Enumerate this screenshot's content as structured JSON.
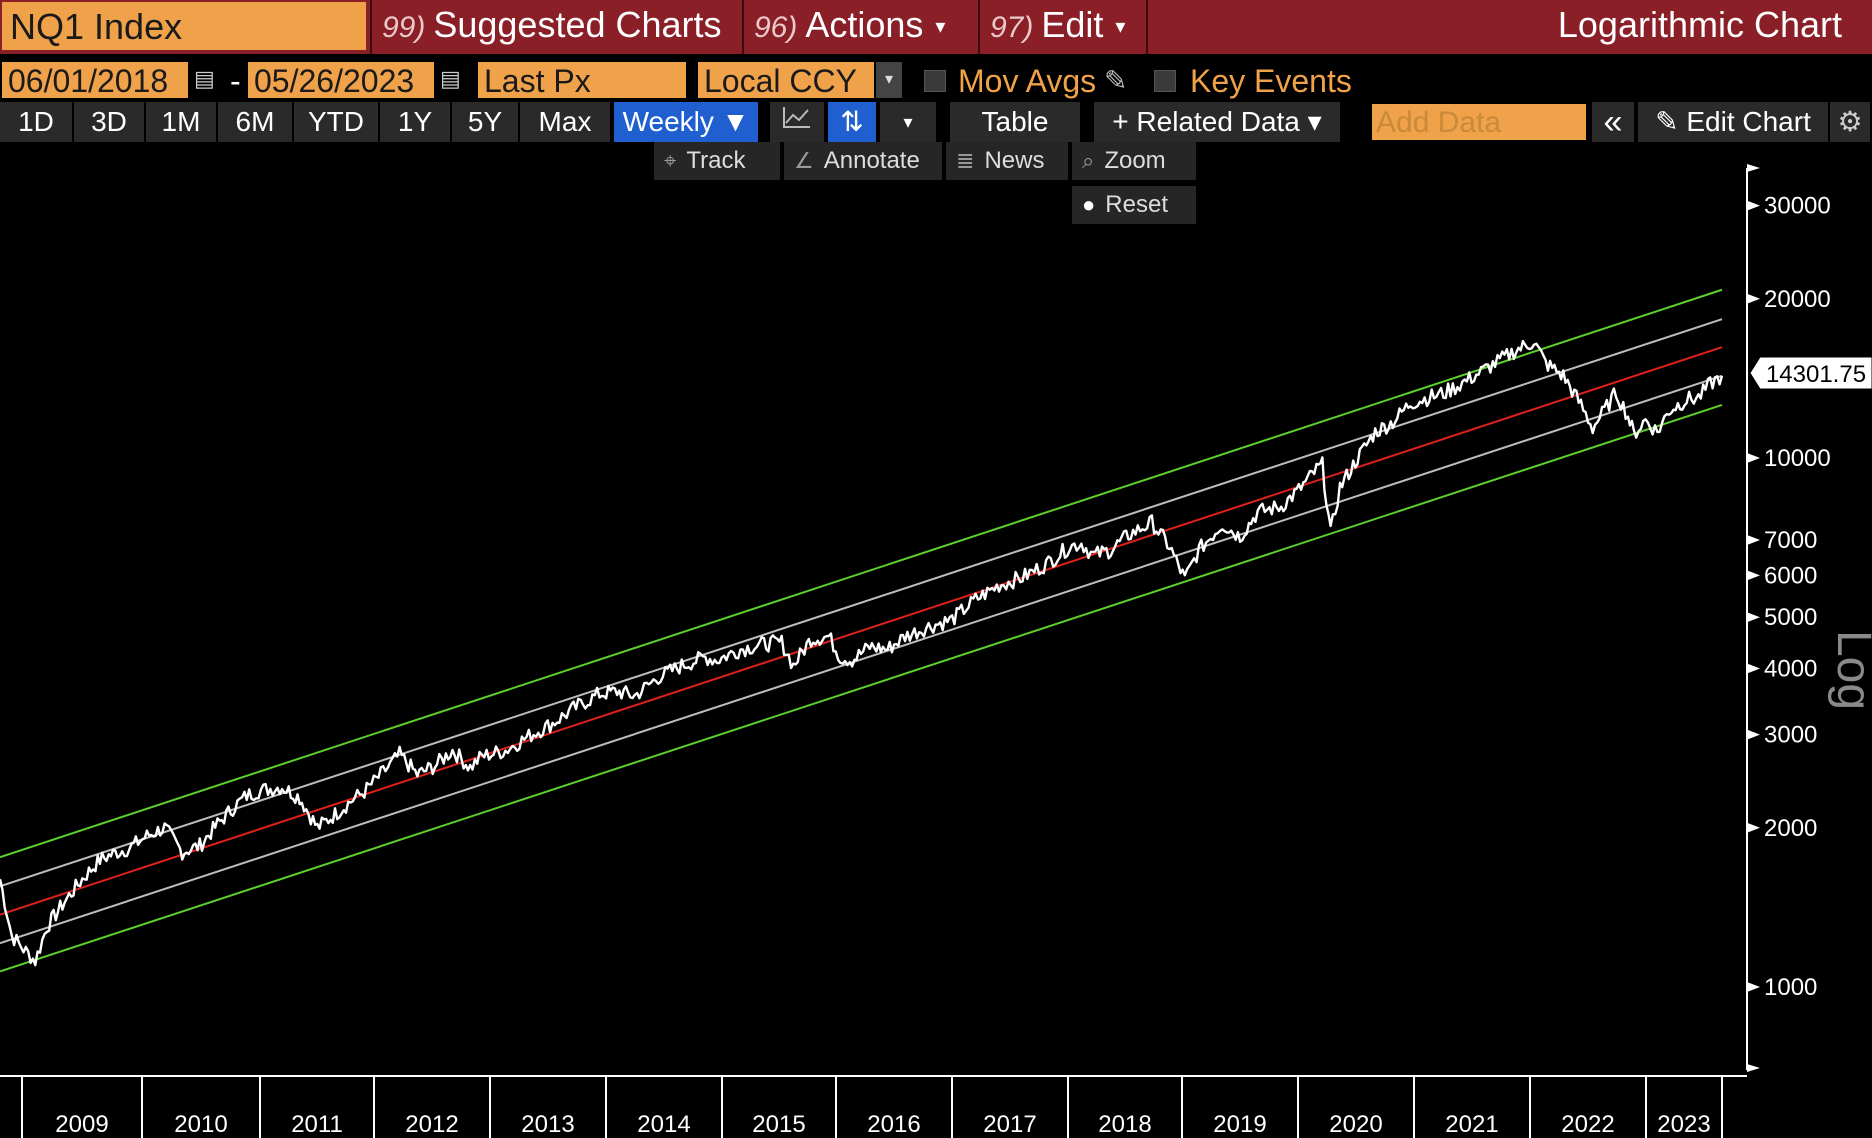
{
  "header": {
    "ticker": "NQ1 Index",
    "suggested": {
      "num": "99)",
      "label": "Suggested Charts"
    },
    "actions": {
      "num": "96)",
      "label": "Actions"
    },
    "edit": {
      "num": "97)",
      "label": "Edit"
    },
    "title": "Logarithmic Chart",
    "caret": "▾"
  },
  "controls": {
    "start_date": "06/01/2018",
    "dash": "-",
    "end_date": "05/26/2023",
    "price_field": "Last Px",
    "currency": "Local CCY",
    "mov_avgs": "Mov Avgs",
    "key_events": "Key Events",
    "calendar_glyph": "▤",
    "dropdown_glyph": "▾",
    "pencil_glyph": "✎"
  },
  "toolbar": {
    "periods": [
      "1D",
      "3D",
      "1M",
      "6M",
      "YTD",
      "1Y",
      "5Y",
      "Max"
    ],
    "frequency": "Weekly ▼",
    "chart_type_glyph": "📈",
    "bar_type_glyph": "⇅",
    "more_glyph": "▾",
    "table": "Table",
    "related_data": "+ Related Data ▾",
    "add_data_placeholder": "Add Data",
    "collapse_glyph": "«",
    "edit_chart": "✎ Edit Chart",
    "settings_glyph": "⚙"
  },
  "tools": {
    "track": "Track",
    "annotate": "Annotate",
    "news": "News",
    "zoom": "Zoom",
    "reset": "Reset",
    "track_glyph": "⌖",
    "annotate_glyph": "∠",
    "news_glyph": "≣",
    "zoom_glyph": "⌕",
    "reset_glyph": "●"
  },
  "chart_data": {
    "type": "line",
    "scale": "log",
    "axis_side_label": "Log",
    "ylim": [
      700,
      40000
    ],
    "y_ticks": [
      1000,
      2000,
      3000,
      4000,
      5000,
      6000,
      7000,
      10000,
      20000,
      30000
    ],
    "y_tick_labels": [
      "1000",
      "2000",
      "3000",
      "4000",
      "5000",
      "6000",
      "7000",
      "10000",
      "20000",
      "30000"
    ],
    "x_range": [
      2008.9,
      2023.55
    ],
    "x_year_labels": [
      "2009",
      "2010",
      "2011",
      "2012",
      "2013",
      "2014",
      "2015",
      "2016",
      "2017",
      "2018",
      "2019",
      "2020",
      "2021",
      "2022",
      "2023"
    ],
    "last_value_label": "14301.75",
    "price": {
      "color": "#ffffff",
      "points": [
        [
          2008.9,
          1600
        ],
        [
          2009.0,
          1250
        ],
        [
          2009.1,
          1180
        ],
        [
          2009.2,
          1120
        ],
        [
          2009.3,
          1300
        ],
        [
          2009.45,
          1450
        ],
        [
          2009.6,
          1600
        ],
        [
          2009.75,
          1740
        ],
        [
          2009.9,
          1800
        ],
        [
          2010.0,
          1830
        ],
        [
          2010.15,
          1930
        ],
        [
          2010.3,
          2000
        ],
        [
          2010.45,
          1800
        ],
        [
          2010.6,
          1850
        ],
        [
          2010.75,
          2030
        ],
        [
          2010.9,
          2200
        ],
        [
          2011.0,
          2300
        ],
        [
          2011.1,
          2350
        ],
        [
          2011.3,
          2390
        ],
        [
          2011.45,
          2280
        ],
        [
          2011.6,
          2000
        ],
        [
          2011.75,
          2120
        ],
        [
          2011.9,
          2260
        ],
        [
          2012.0,
          2340
        ],
        [
          2012.2,
          2600
        ],
        [
          2012.3,
          2750
        ],
        [
          2012.45,
          2520
        ],
        [
          2012.6,
          2620
        ],
        [
          2012.75,
          2800
        ],
        [
          2012.9,
          2600
        ],
        [
          2013.0,
          2730
        ],
        [
          2013.2,
          2800
        ],
        [
          2013.4,
          2980
        ],
        [
          2013.6,
          3150
        ],
        [
          2013.8,
          3380
        ],
        [
          2014.0,
          3580
        ],
        [
          2014.15,
          3620
        ],
        [
          2014.3,
          3550
        ],
        [
          2014.5,
          3850
        ],
        [
          2014.7,
          4050
        ],
        [
          2014.9,
          4200
        ],
        [
          2015.0,
          4150
        ],
        [
          2015.2,
          4350
        ],
        [
          2015.4,
          4450
        ],
        [
          2015.55,
          4480
        ],
        [
          2015.65,
          4050
        ],
        [
          2015.8,
          4550
        ],
        [
          2015.95,
          4600
        ],
        [
          2016.05,
          4200
        ],
        [
          2016.15,
          4150
        ],
        [
          2016.3,
          4400
        ],
        [
          2016.45,
          4350
        ],
        [
          2016.6,
          4600
        ],
        [
          2016.8,
          4800
        ],
        [
          2017.0,
          4950
        ],
        [
          2017.2,
          5400
        ],
        [
          2017.4,
          5750
        ],
        [
          2017.6,
          5950
        ],
        [
          2017.8,
          6300
        ],
        [
          2018.0,
          6800
        ],
        [
          2018.1,
          6900
        ],
        [
          2018.2,
          6550
        ],
        [
          2018.35,
          6700
        ],
        [
          2018.5,
          7150
        ],
        [
          2018.7,
          7550
        ],
        [
          2018.85,
          6800
        ],
        [
          2018.98,
          5900
        ],
        [
          2019.1,
          6700
        ],
        [
          2019.3,
          7500
        ],
        [
          2019.45,
          7100
        ],
        [
          2019.6,
          7900
        ],
        [
          2019.8,
          8100
        ],
        [
          2019.95,
          8700
        ],
        [
          2020.1,
          9500
        ],
        [
          2020.15,
          9700
        ],
        [
          2020.22,
          7200
        ],
        [
          2020.3,
          8800
        ],
        [
          2020.45,
          10000
        ],
        [
          2020.6,
          11200
        ],
        [
          2020.75,
          11700
        ],
        [
          2020.9,
          12700
        ],
        [
          2021.0,
          12900
        ],
        [
          2021.2,
          13300
        ],
        [
          2021.4,
          14100
        ],
        [
          2021.6,
          15000
        ],
        [
          2021.8,
          16000
        ],
        [
          2021.95,
          16600
        ],
        [
          2022.05,
          15100
        ],
        [
          2022.2,
          14300
        ],
        [
          2022.35,
          12600
        ],
        [
          2022.45,
          11400
        ],
        [
          2022.55,
          12300
        ],
        [
          2022.65,
          13300
        ],
        [
          2022.75,
          12000
        ],
        [
          2022.8,
          11100
        ],
        [
          2022.9,
          11800
        ],
        [
          2023.0,
          11200
        ],
        [
          2023.1,
          12300
        ],
        [
          2023.25,
          12900
        ],
        [
          2023.35,
          13000
        ],
        [
          2023.45,
          13800
        ],
        [
          2023.55,
          14301.75
        ]
      ]
    },
    "regression_lines": [
      {
        "color": "#5ccf2a",
        "start": [
          2008.9,
          1760
        ],
        "end": [
          2023.55,
          20800
        ]
      },
      {
        "color": "#bdbdbd",
        "start": [
          2008.9,
          1550
        ],
        "end": [
          2023.55,
          18300
        ]
      },
      {
        "color": "#e0201c",
        "start": [
          2008.9,
          1370
        ],
        "end": [
          2023.55,
          16200
        ]
      },
      {
        "color": "#bdbdbd",
        "start": [
          2008.9,
          1210
        ],
        "end": [
          2023.55,
          14300
        ]
      },
      {
        "color": "#5ccf2a",
        "start": [
          2008.9,
          1070
        ],
        "end": [
          2023.55,
          12600
        ]
      }
    ]
  }
}
